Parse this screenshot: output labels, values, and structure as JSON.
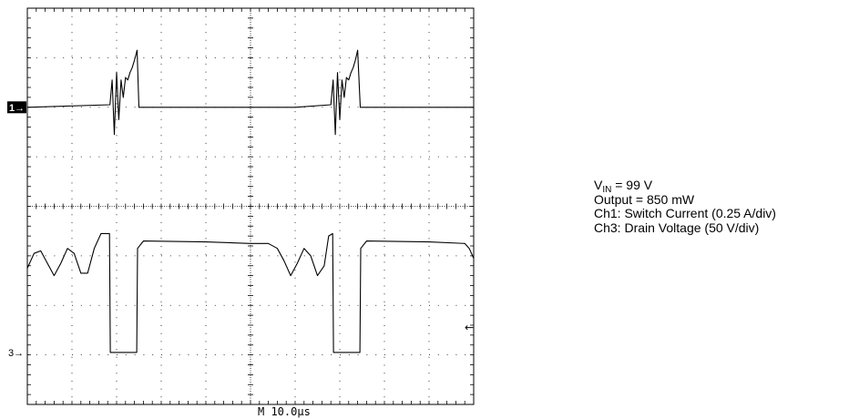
{
  "chart_data": {
    "type": "line",
    "title": "",
    "timebase_label": "M 10.0µs",
    "grid": true,
    "divisions": {
      "x": 10,
      "y": 8
    },
    "x_range_us": [
      0,
      100
    ],
    "y_range_div": [
      -4,
      4
    ],
    "markers": {
      "ch1": {
        "label": "1→",
        "level_div": 2.0
      },
      "ch3": {
        "label": "3→",
        "level_div": -2.95
      },
      "trigger_level_div": -2.45
    },
    "series": [
      {
        "name": "Ch1",
        "x": [
          0,
          18.5,
          19.0,
          19.5,
          20.0,
          20.5,
          21.0,
          21.5,
          22.0,
          22.5,
          23.0,
          23.5,
          24.0,
          24.6,
          25.0,
          26.0,
          40.0,
          60.0,
          68.0,
          68.5,
          69.0,
          69.5,
          70.0,
          70.5,
          71.0,
          71.5,
          72.0,
          72.5,
          73.0,
          73.5,
          74.0,
          74.6,
          75.0,
          76.0,
          100.0
        ],
        "y": [
          2.0,
          2.05,
          2.55,
          1.45,
          2.7,
          1.75,
          2.55,
          2.2,
          2.6,
          2.55,
          2.7,
          2.8,
          2.95,
          3.15,
          2.0,
          2.0,
          2.0,
          2.0,
          2.05,
          2.55,
          1.45,
          2.7,
          1.75,
          2.55,
          2.2,
          2.6,
          2.55,
          2.7,
          2.8,
          2.95,
          3.15,
          2.0,
          2.0,
          2.0,
          2.0
        ]
      },
      {
        "name": "Ch3",
        "x": [
          0,
          1.5,
          3.0,
          4.5,
          6.0,
          7.5,
          9.0,
          10.5,
          12.0,
          13.5,
          15.0,
          16.5,
          17.5,
          18.4,
          18.6,
          24.5,
          24.7,
          26.0,
          40.0,
          50.0,
          54.0,
          56.0,
          57.5,
          59.0,
          60.5,
          62.0,
          63.5,
          65.0,
          66.5,
          67.5,
          68.4,
          68.6,
          74.5,
          74.7,
          76.0,
          90.0,
          98.0,
          99.0,
          100.0
        ],
        "y": [
          -1.25,
          -0.95,
          -0.9,
          -1.15,
          -1.4,
          -1.15,
          -0.85,
          -0.95,
          -1.35,
          -1.35,
          -0.85,
          -0.55,
          -0.55,
          -0.55,
          -2.95,
          -2.95,
          -0.85,
          -0.7,
          -0.72,
          -0.75,
          -0.75,
          -0.85,
          -1.1,
          -1.4,
          -1.15,
          -0.85,
          -1.0,
          -1.4,
          -1.2,
          -0.6,
          -0.55,
          -2.95,
          -2.95,
          -0.85,
          -0.7,
          -0.72,
          -0.75,
          -0.85,
          -1.05
        ]
      }
    ]
  },
  "annotations": {
    "vin_symbol": "V",
    "vin_subscript": "IN",
    "vin_rest": " = 99 V",
    "output": "Output = 850 mW",
    "ch1_note": "Ch1: Switch Current (0.25 A/div)",
    "ch3_note": "Ch3: Drain Voltage (50 V/div)"
  }
}
